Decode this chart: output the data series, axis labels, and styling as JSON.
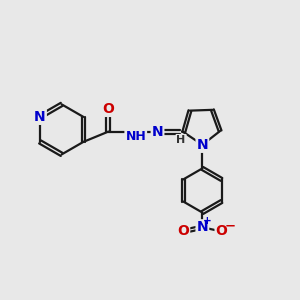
{
  "bg_color": "#e8e8e8",
  "bond_color": "#1a1a1a",
  "bond_width": 1.6,
  "atom_colors": {
    "N": "#0000cc",
    "O": "#cc0000",
    "C": "#1a1a1a",
    "H": "#333333"
  },
  "font_size": 10,
  "fig_size": [
    3.0,
    3.0
  ],
  "dpi": 100
}
